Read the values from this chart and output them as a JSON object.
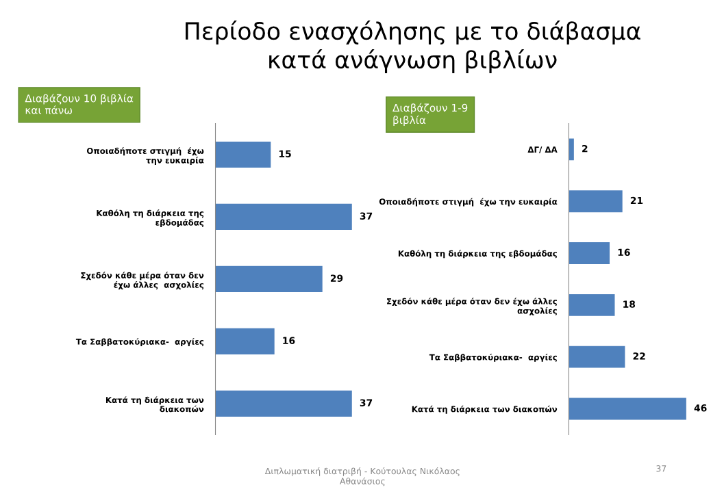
{
  "chart_data": [
    {
      "type": "bar",
      "orientation": "horizontal",
      "data_labels": true,
      "title": "Περίοδο ενασχόλησης με το διάβασμα\nκατά ανάγνωση βιβλίων",
      "subtitle": "Διαβάζουν 10 βιβλία\nκαι πάνω",
      "categories": [
        "Οποιαδήποτε στιγμή  έχω\nτην ευκαιρία",
        "Καθόλη τη διάρκεια της\nεβδομάδας",
        "Σχεδόν κάθε μέρα όταν δεν\nέχω άλλες  ασχολίες",
        "Τα Σαββατοκύριακα-  αργίες",
        "Κατά τη διάρκεια των\nδιακοπών"
      ],
      "values": [
        15,
        37,
        29,
        16,
        37
      ],
      "color": "#4f81bd",
      "annotations": [
        "Διπλωματική διατριβή - Κούτουλας Νικόλαος\nΑθανάσιος"
      ]
    },
    {
      "type": "bar",
      "orientation": "horizontal",
      "data_labels": true,
      "subtitle": "Διαβάζουν 1-9\nβιβλία",
      "categories": [
        "ΔΓ/ ΔΑ",
        "Οποιαδήποτε στιγμή  έχω την ευκαιρία",
        "Καθόλη τη διάρκεια της εβδομάδας",
        "Σχεδόν κάθε μέρα όταν δεν έχω άλλες\nασχολίες",
        "Τα Σαββατοκύριακα-  αργίες",
        "Κατά τη διάρκεια των διακοπών"
      ],
      "values": [
        2,
        21,
        16,
        18,
        22,
        46
      ],
      "color": "#4f81bd",
      "annotations": [
        "37"
      ]
    }
  ]
}
